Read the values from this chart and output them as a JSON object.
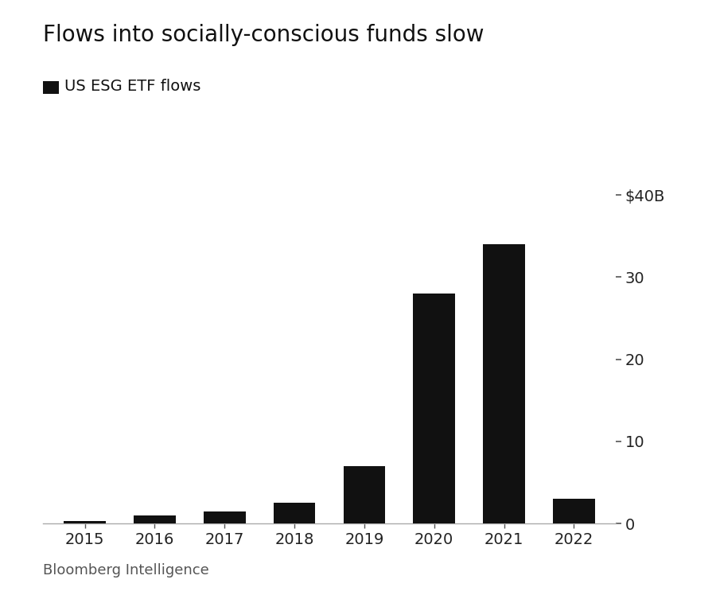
{
  "title": "Flows into socially-conscious funds slow",
  "legend_label": "US ESG ETF flows",
  "source": "Bloomberg Intelligence",
  "categories": [
    2015,
    2016,
    2017,
    2018,
    2019,
    2020,
    2021,
    2022
  ],
  "values": [
    0.3,
    1.0,
    1.5,
    2.5,
    7.0,
    28.0,
    34.0,
    3.0
  ],
  "bar_color": "#111111",
  "background_color": "#ffffff",
  "yticks": [
    0,
    10,
    20,
    30,
    40
  ],
  "ytick_labels": [
    "0",
    "10",
    "20",
    "30",
    "$40B"
  ],
  "ylim": [
    0,
    42
  ],
  "title_fontsize": 20,
  "legend_fontsize": 14,
  "tick_fontsize": 14,
  "source_fontsize": 13,
  "bar_width": 0.6
}
